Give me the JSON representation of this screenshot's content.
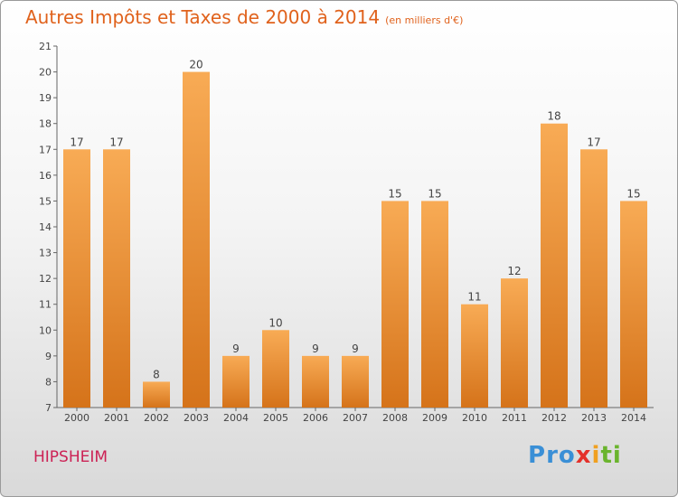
{
  "header": {
    "title": "Autres Impôts et Taxes de 2000 à 2014",
    "subtitle": "(en milliers d'€)"
  },
  "footer": {
    "commune": "HIPSHEIM",
    "logo_letters": [
      {
        "ch": "P",
        "color": "#3a8fd6"
      },
      {
        "ch": "r",
        "color": "#3a8fd6"
      },
      {
        "ch": "o",
        "color": "#3a8fd6"
      },
      {
        "ch": "x",
        "color": "#e4312b"
      },
      {
        "ch": "i",
        "color": "#f0a020"
      },
      {
        "ch": "t",
        "color": "#6ab42d"
      },
      {
        "ch": "i",
        "color": "#6ab42d"
      }
    ]
  },
  "colors": {
    "bar_light": "#f8ab55",
    "bar_dark": "#d5731a",
    "title": "#e0621c",
    "commune": "#cc2255"
  },
  "chart_data": {
    "type": "bar",
    "title": "Autres Impôts et Taxes de 2000 à 2014",
    "subtitle": "(en milliers d'€)",
    "categories": [
      "2000",
      "2001",
      "2002",
      "2003",
      "2004",
      "2005",
      "2006",
      "2007",
      "2008",
      "2009",
      "2010",
      "2011",
      "2012",
      "2013",
      "2014"
    ],
    "values": [
      17,
      17,
      8,
      20,
      9,
      10,
      9,
      9,
      15,
      15,
      11,
      12,
      18,
      17,
      15
    ],
    "ylim": [
      7,
      21
    ],
    "yticks": [
      7,
      8,
      9,
      10,
      11,
      12,
      13,
      14,
      15,
      16,
      17,
      18,
      19,
      20,
      21
    ],
    "grid": false,
    "legend": "none"
  }
}
